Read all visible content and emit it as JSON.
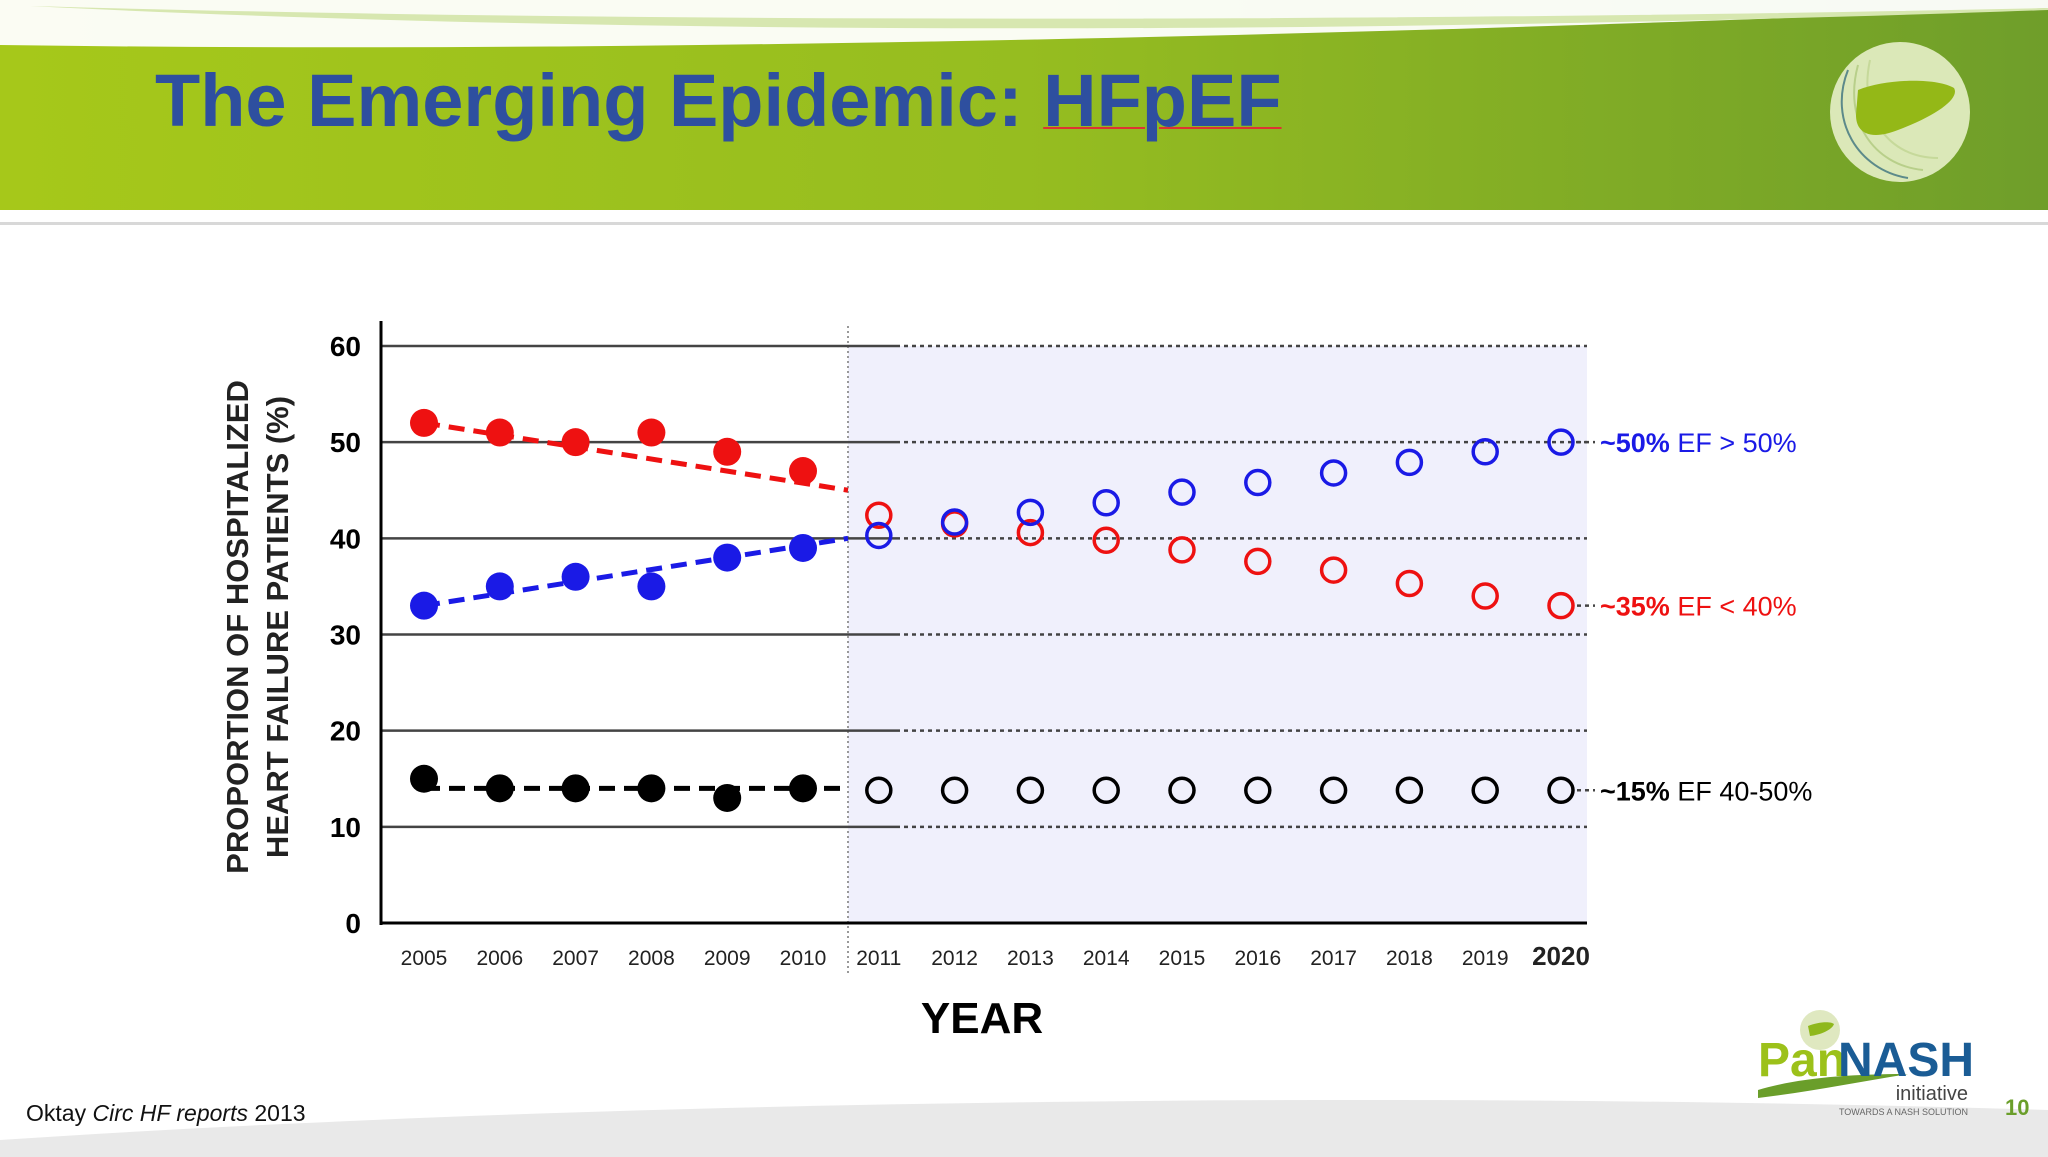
{
  "slide": {
    "title_prefix": "The Emerging Epidemic: ",
    "title_term": "HFpEF",
    "citation_author": "Oktay",
    "citation_journal": "Circ HF reports",
    "citation_year": "2013",
    "page_number": "10",
    "logo_text_pan": "Pan",
    "logo_text_nash": "NASH",
    "logo_text_initiative": "initiative",
    "logo_tagline": "TOWARDS A NASH SOLUTION"
  },
  "colors": {
    "title": "#2e4f9f",
    "red": "#ee1111",
    "blue": "#1a1ae6",
    "black": "#000000",
    "projection_shade": "#f0f0fc"
  },
  "chart_data": {
    "type": "scatter",
    "title": "",
    "xlabel": "YEAR",
    "ylabel_line1": "PROPORTION OF HOSPITALIZED",
    "ylabel_line2": "HEART FAILURE PATIENTS (%)",
    "ylim": [
      0,
      60
    ],
    "yticks": [
      "0",
      "10",
      "20",
      "30",
      "40",
      "50",
      "60"
    ],
    "x": [
      "2005",
      "2006",
      "2007",
      "2008",
      "2009",
      "2010",
      "2011",
      "2012",
      "2013",
      "2014",
      "2015",
      "2016",
      "2017",
      "2018",
      "2019",
      "2020"
    ],
    "observed_years": [
      "2005",
      "2006",
      "2007",
      "2008",
      "2009",
      "2010"
    ],
    "projected_years": [
      "2011",
      "2012",
      "2013",
      "2014",
      "2015",
      "2016",
      "2017",
      "2018",
      "2019",
      "2020"
    ],
    "series": [
      {
        "name": "EF < 40%",
        "color": "red",
        "observed": [
          52,
          51,
          50,
          51,
          49,
          47
        ],
        "trend": [
          52,
          45
        ],
        "projected": [
          42.4,
          41.5,
          40.6,
          39.8,
          38.8,
          37.6,
          36.7,
          35.3,
          34,
          33
        ],
        "annotation_pct": "~35%",
        "annotation_label": " EF < 40%"
      },
      {
        "name": "EF > 50%",
        "color": "blue",
        "observed": [
          33,
          35,
          36,
          35,
          38,
          39
        ],
        "trend": [
          33,
          40
        ],
        "projected": [
          40.3,
          41.7,
          42.7,
          43.7,
          44.8,
          45.8,
          46.8,
          47.9,
          49,
          50
        ],
        "annotation_pct": "~50%",
        "annotation_label": " EF > 50%"
      },
      {
        "name": "EF 40-50%",
        "color": "black",
        "observed": [
          15,
          14,
          14,
          14,
          13,
          14
        ],
        "trend": [
          14,
          14
        ],
        "projected": [
          13.8,
          13.8,
          13.8,
          13.8,
          13.8,
          13.8,
          13.8,
          13.8,
          13.8,
          13.8
        ],
        "annotation_pct": "~15%",
        "annotation_label": " EF 40-50%"
      }
    ],
    "grid": true,
    "legend": "right (inline annotations)"
  }
}
